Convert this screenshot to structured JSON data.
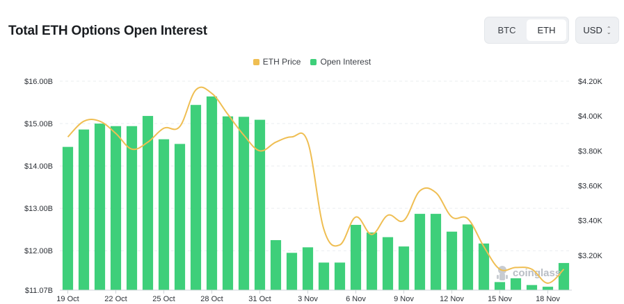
{
  "header": {
    "title": "Total ETH Options Open Interest",
    "asset_tabs": [
      {
        "label": "BTC",
        "active": false
      },
      {
        "label": "ETH",
        "active": true
      }
    ],
    "currency": {
      "selected": "USD"
    }
  },
  "watermark": "coinglass",
  "colors": {
    "open_interest": "#3ecf7a",
    "eth_price": "#efbe52",
    "grid": "#e9ecef"
  },
  "chart_data": {
    "type": "bar",
    "categories": [
      "19 Oct",
      "20 Oct",
      "21 Oct",
      "22 Oct",
      "23 Oct",
      "24 Oct",
      "25 Oct",
      "26 Oct",
      "27 Oct",
      "28 Oct",
      "29 Oct",
      "30 Oct",
      "31 Oct",
      "1 Nov",
      "2 Nov",
      "3 Nov",
      "4 Nov",
      "5 Nov",
      "6 Nov",
      "7 Nov",
      "8 Nov",
      "9 Nov",
      "10 Nov",
      "11 Nov",
      "12 Nov",
      "13 Nov",
      "14 Nov",
      "15 Nov",
      "16 Nov",
      "17 Nov",
      "18 Nov",
      "19 Nov"
    ],
    "x_tick_labels": [
      "19 Oct",
      "22 Oct",
      "25 Oct",
      "28 Oct",
      "31 Oct",
      "3 Nov",
      "6 Nov",
      "9 Nov",
      "12 Nov",
      "15 Nov",
      "18 Nov"
    ],
    "series": [
      {
        "name": "Open Interest",
        "type": "bar",
        "axis": "left",
        "values": [
          14.45,
          14.86,
          15.0,
          14.94,
          14.94,
          15.18,
          14.63,
          14.52,
          15.44,
          15.64,
          15.17,
          15.16,
          15.09,
          12.25,
          11.95,
          12.08,
          11.72,
          11.72,
          12.61,
          12.43,
          12.32,
          12.1,
          12.87,
          12.87,
          12.45,
          12.62,
          12.17,
          11.26,
          11.35,
          11.19,
          11.15,
          11.71
        ]
      },
      {
        "name": "ETH Price",
        "type": "line",
        "axis": "right",
        "values": [
          3880,
          3970,
          3970,
          3900,
          3810,
          3850,
          3930,
          3940,
          4150,
          4130,
          4010,
          3890,
          3800,
          3850,
          3880,
          3850,
          3350,
          3260,
          3420,
          3320,
          3430,
          3400,
          3570,
          3560,
          3420,
          3410,
          3250,
          3120,
          3130,
          3120,
          3040,
          3120
        ]
      }
    ],
    "left_axis": {
      "ticks": [
        "$11.07B",
        "$12.00B",
        "$13.00B",
        "$14.00B",
        "$15.00B",
        "$16.00B"
      ],
      "min": 11.07,
      "max": 16.0
    },
    "right_axis": {
      "ticks": [
        "$3.20K",
        "$3.40K",
        "$3.60K",
        "$3.80K",
        "$4.00K",
        "$4.20K"
      ],
      "min": 3000,
      "max": 4200
    },
    "grid": true,
    "legend_position": "top-center"
  }
}
